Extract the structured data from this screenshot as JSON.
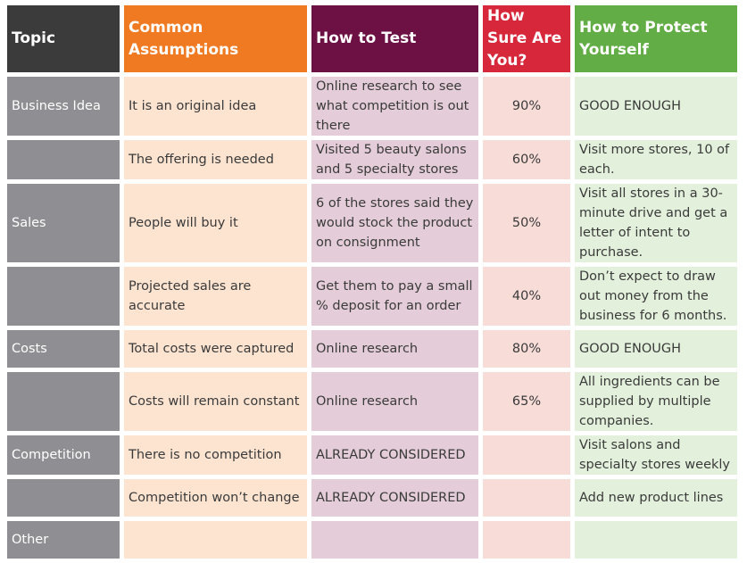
{
  "headers": [
    "Topic",
    "Common Assumptions",
    "How to Test",
    "How Sure Are You?",
    "How to Protect Yourself"
  ],
  "rows": [
    {
      "topic": "Business Idea",
      "assumption": "It is an original idea",
      "test": "Online research to see what competition is out there",
      "sure": "90%",
      "protect": "GOOD ENOUGH"
    },
    {
      "topic": "",
      "assumption": "The offering is needed",
      "test": "Visited 5 beauty salons and 5 specialty stores",
      "sure": "60%",
      "protect": "Visit more stores, 10 of each."
    },
    {
      "topic": "Sales",
      "assumption": "People will buy it",
      "test": "6 of the stores said they would stock the product on consignment",
      "sure": "50%",
      "protect": "Visit all stores in a 30-minute drive and get a letter of intent to purchase."
    },
    {
      "topic": "",
      "assumption": "Projected sales are accurate",
      "test": "Get them to pay a small % deposit for an order",
      "sure": "40%",
      "protect": "Don’t expect to draw out money from the business for 6 months."
    },
    {
      "topic": "Costs",
      "assumption": "Total costs were captured",
      "test": "Online research",
      "sure": "80%",
      "protect": "GOOD ENOUGH"
    },
    {
      "topic": "",
      "assumption": "Costs will remain constant",
      "test": "Online research",
      "sure": "65%",
      "protect": "All ingredients can be supplied by multiple companies."
    },
    {
      "topic": "Competition",
      "assumption": "There is no competition",
      "test": "ALREADY CONSIDERED",
      "sure": "",
      "protect": "Visit salons and specialty stores weekly"
    },
    {
      "topic": "",
      "assumption": "Competition won’t change",
      "test": "ALREADY CONSIDERED",
      "sure": "",
      "protect": "Add new product lines"
    },
    {
      "topic": "Other",
      "assumption": "",
      "test": "",
      "sure": "",
      "protect": ""
    }
  ]
}
